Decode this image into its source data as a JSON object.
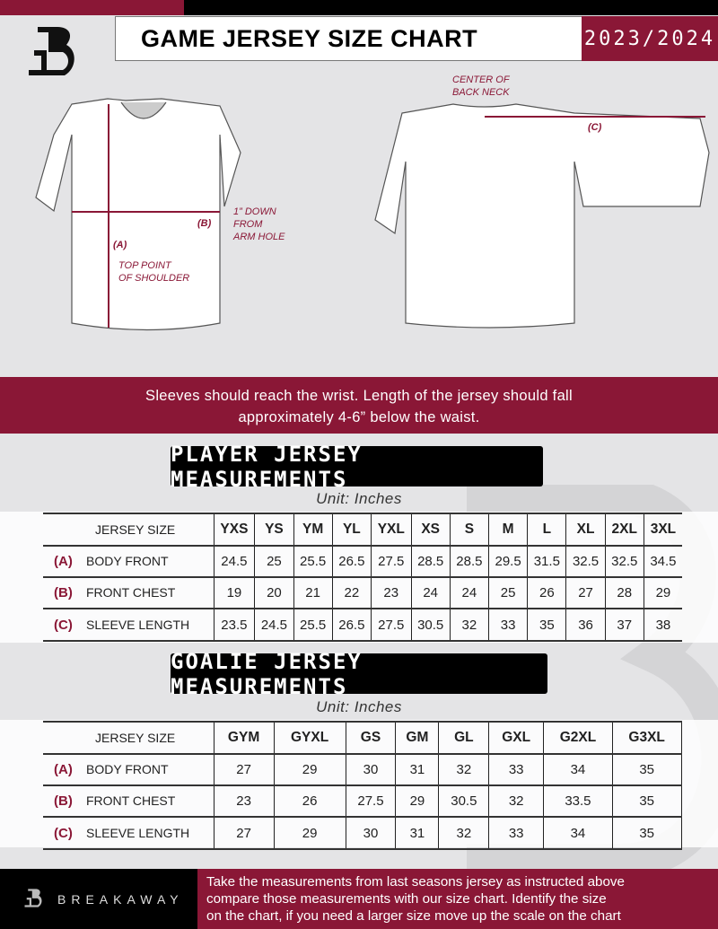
{
  "header": {
    "title": "GAME JERSEY SIZE CHART",
    "season": "2023/2024"
  },
  "diagram": {
    "center_back_neck": [
      "CENTER OF",
      "BACK NECK"
    ],
    "label_a": "(A)",
    "label_b": "(B)",
    "label_c": "(C)",
    "arm_hole_note": [
      "1” DOWN",
      "FROM",
      "ARM HOLE"
    ],
    "shoulder_note": [
      "TOP POINT",
      "OF SHOULDER"
    ]
  },
  "instructions": [
    "Sleeves should reach the wrist. Length of the jersey should fall",
    "approximately 4-6” below the waist."
  ],
  "player": {
    "heading": "PLAYER JERSEY MEASUREMENTS",
    "unit": "Unit: Inches",
    "size_label": "JERSEY SIZE",
    "sizes": [
      "YXS",
      "YS",
      "YM",
      "YL",
      "YXL",
      "XS",
      "S",
      "M",
      "L",
      "XL",
      "2XL",
      "3XL"
    ],
    "rows": [
      {
        "letter": "(A)",
        "name": "BODY FRONT",
        "values": [
          "24.5",
          "25",
          "25.5",
          "26.5",
          "27.5",
          "28.5",
          "28.5",
          "29.5",
          "31.5",
          "32.5",
          "32.5",
          "34.5"
        ]
      },
      {
        "letter": "(B)",
        "name": "FRONT CHEST",
        "values": [
          "19",
          "20",
          "21",
          "22",
          "23",
          "24",
          "24",
          "25",
          "26",
          "27",
          "28",
          "29"
        ]
      },
      {
        "letter": "(C)",
        "name": "SLEEVE LENGTH",
        "values": [
          "23.5",
          "24.5",
          "25.5",
          "26.5",
          "27.5",
          "30.5",
          "32",
          "33",
          "35",
          "36",
          "37",
          "38"
        ]
      }
    ]
  },
  "goalie": {
    "heading": "GOALIE JERSEY MEASUREMENTS",
    "unit": "Unit: Inches",
    "size_label": "JERSEY SIZE",
    "sizes": [
      "GYM",
      "GYXL",
      "GS",
      "GM",
      "GL",
      "GXL",
      "G2XL",
      "G3XL",
      ""
    ],
    "rows": [
      {
        "letter": "(A)",
        "name": "BODY FRONT",
        "values": [
          "27",
          "29",
          "30",
          "31",
          "32",
          "33",
          "34",
          "35",
          ""
        ]
      },
      {
        "letter": "(B)",
        "name": "FRONT CHEST",
        "values": [
          "23",
          "26",
          "27.5",
          "29",
          "30.5",
          "32",
          "33.5",
          "35",
          ""
        ]
      },
      {
        "letter": "(C)",
        "name": "SLEEVE LENGTH",
        "values": [
          "27",
          "29",
          "30",
          "31",
          "32",
          "33",
          "34",
          "35",
          ""
        ]
      }
    ]
  },
  "footer": {
    "brand": "BREAKAWAY",
    "text": [
      "Take the measurements from last seasons jersey as instructed above",
      "compare those measurements  with our size chart. Identify the size",
      "on the chart, if you need a larger size move up the scale on the chart"
    ]
  },
  "colors": {
    "maroon": "#8a1736",
    "black": "#000000",
    "background": "#e4e4e6"
  }
}
